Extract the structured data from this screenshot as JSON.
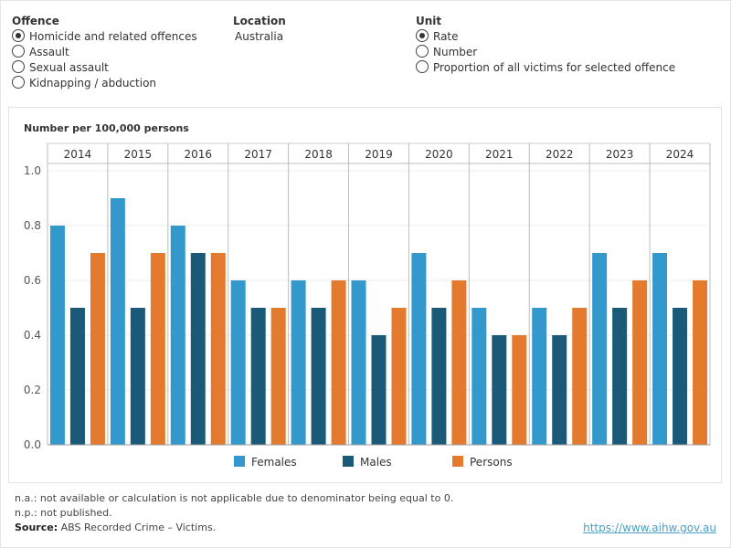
{
  "filters": {
    "offence": {
      "title": "Offence",
      "options": [
        {
          "label": "Homicide and related offences",
          "checked": true
        },
        {
          "label": "Assault",
          "checked": false
        },
        {
          "label": "Sexual assault",
          "checked": false
        },
        {
          "label": "Kidnapping / abduction",
          "checked": false
        }
      ]
    },
    "location": {
      "title": "Location",
      "value": "Australia"
    },
    "unit": {
      "title": "Unit",
      "options": [
        {
          "label": "Rate",
          "checked": true
        },
        {
          "label": "Number",
          "checked": false
        },
        {
          "label": "Proportion of all victims for selected offence",
          "checked": false
        }
      ]
    }
  },
  "chart_data": {
    "type": "bar",
    "title": "",
    "ylabel": "Number per 100,000 persons",
    "xlabel": "",
    "categories": [
      "2014",
      "2015",
      "2016",
      "2017",
      "2018",
      "2019",
      "2020",
      "2021",
      "2022",
      "2023",
      "2024"
    ],
    "series": [
      {
        "name": "Females",
        "color": "#3399cc",
        "values": [
          0.8,
          0.9,
          0.8,
          0.6,
          0.6,
          0.6,
          0.7,
          0.5,
          0.5,
          0.7,
          0.7
        ]
      },
      {
        "name": "Males",
        "color": "#1a5a78",
        "values": [
          0.5,
          0.5,
          0.7,
          0.5,
          0.5,
          0.4,
          0.5,
          0.4,
          0.4,
          0.5,
          0.5
        ]
      },
      {
        "name": "Persons",
        "color": "#e47a2e",
        "values": [
          0.7,
          0.7,
          0.7,
          0.5,
          0.6,
          0.5,
          0.6,
          0.4,
          0.5,
          0.6,
          0.6
        ]
      }
    ],
    "yticks": [
      "0.0",
      "0.2",
      "0.4",
      "0.6",
      "0.8",
      "1.0"
    ],
    "ylim": [
      0,
      1.0
    ],
    "grid": true,
    "legend": "bottom-center"
  },
  "footnotes": {
    "na": "n.a.: not available or calculation is not applicable due to denominator being equal to 0.",
    "np": "n.p.: not published.",
    "source_label": "Source:",
    "source_text": "ABS Recorded Crime – Victims."
  },
  "link": "https://www.aihw.gov.au"
}
